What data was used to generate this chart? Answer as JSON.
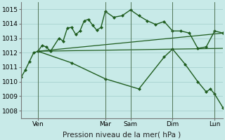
{
  "background_color": "#c8eae8",
  "grid_color": "#a0ccc9",
  "line_color": "#1e5c1e",
  "ylim": [
    1007.5,
    1015.5
  ],
  "yticks": [
    1008,
    1009,
    1010,
    1011,
    1012,
    1013,
    1014,
    1015
  ],
  "xlabel": "Pression niveau de la mer( hPa )",
  "xlabel_fontsize": 7.5,
  "tick_fontsize": 6.5,
  "xlim": [
    0,
    24
  ],
  "series": [
    {
      "x": [
        0,
        0.5,
        1,
        1.5,
        2,
        2.5,
        3,
        3.5,
        4.5,
        5,
        5.5,
        6,
        6.5,
        7,
        7.5,
        8,
        8.5,
        9,
        9.5,
        10,
        11,
        12,
        13,
        14,
        15,
        16,
        17,
        18,
        19,
        20,
        21,
        22,
        23,
        24
      ],
      "y": [
        1010.3,
        1010.8,
        1011.4,
        1012.0,
        1012.1,
        1012.5,
        1012.4,
        1012.1,
        1013.0,
        1012.8,
        1013.7,
        1013.75,
        1013.25,
        1013.5,
        1014.2,
        1014.3,
        1013.9,
        1013.55,
        1013.75,
        1014.85,
        1014.45,
        1014.55,
        1014.95,
        1014.55,
        1014.2,
        1013.95,
        1014.15,
        1013.5,
        1013.5,
        1013.35,
        1012.3,
        1012.4,
        1013.5,
        1013.35
      ],
      "marker": "D",
      "markersize": 2.0,
      "linestyle": "-",
      "linewidth": 1.0
    },
    {
      "x": [
        2,
        24
      ],
      "y": [
        1012.1,
        1013.35
      ],
      "marker": null,
      "linestyle": "-",
      "linewidth": 0.9
    },
    {
      "x": [
        2,
        24
      ],
      "y": [
        1012.1,
        1012.3
      ],
      "marker": null,
      "linestyle": "-",
      "linewidth": 0.9
    },
    {
      "x": [
        2,
        6,
        10,
        14,
        17,
        18,
        19.5,
        21,
        22,
        22.5,
        23,
        24
      ],
      "y": [
        1012.1,
        1011.3,
        1010.2,
        1009.5,
        1011.7,
        1012.25,
        1011.2,
        1010.0,
        1009.3,
        1009.5,
        1009.15,
        1008.2
      ],
      "marker": "D",
      "markersize": 2.0,
      "linestyle": "-",
      "linewidth": 1.0
    }
  ],
  "vlines": [
    {
      "x": 2,
      "label": "Ven"
    },
    {
      "x": 10,
      "label": "Mar"
    },
    {
      "x": 13,
      "label": "Sam"
    },
    {
      "x": 18,
      "label": "Dim"
    },
    {
      "x": 23,
      "label": "Lun"
    }
  ]
}
